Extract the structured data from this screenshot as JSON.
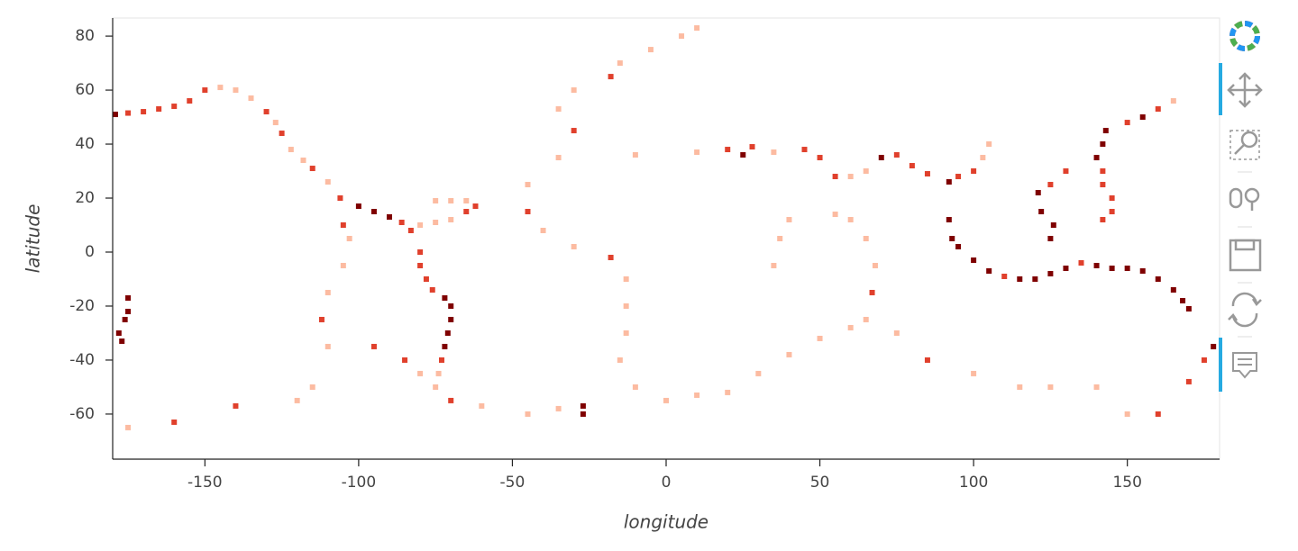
{
  "chart_data": {
    "type": "scatter",
    "xlabel": "longitude",
    "ylabel": "latitude",
    "xlim": [
      -180,
      180
    ],
    "ylim": [
      -76.7,
      86.7
    ],
    "xticks": [
      -150,
      -100,
      -50,
      0,
      50,
      100,
      150
    ],
    "yticks": [
      -60,
      -40,
      -20,
      0,
      20,
      40,
      60,
      80
    ],
    "cmap": [
      "#fcbba1",
      "#e0402c",
      "#7f0000"
    ],
    "x": [
      -180,
      -175,
      -170,
      -165,
      -160,
      -155,
      -150,
      -145,
      -140,
      -135,
      -130,
      -127,
      -125,
      -122,
      -118,
      -115,
      -110,
      -106,
      -100,
      -95,
      -90,
      -86,
      -83,
      -80,
      -75,
      -70,
      -65,
      -62,
      -65,
      -70,
      -75,
      -80,
      -80,
      -78,
      -76,
      -72,
      -70,
      -70,
      -71,
      -72,
      -73,
      -74,
      -75,
      -70,
      -60,
      -45,
      -35,
      -27,
      -27,
      -18,
      -30,
      -35,
      -30,
      -35,
      -45,
      -45,
      -40,
      -30,
      -18,
      -13,
      -13,
      -13,
      -15,
      -10,
      0,
      10,
      20,
      -15,
      -5,
      5,
      10,
      30,
      40,
      50,
      60,
      65,
      67,
      68,
      65,
      60,
      55,
      75,
      85,
      100,
      115,
      125,
      140,
      150,
      160,
      170,
      175,
      178,
      -178,
      -175,
      -175,
      -176,
      -177,
      -175,
      -160,
      -140,
      -120,
      -115,
      -110,
      -112,
      -110,
      -105,
      -103,
      -105,
      -95,
      -85,
      -80,
      -10,
      10,
      20,
      25,
      28,
      35,
      45,
      50,
      55,
      60,
      65,
      70,
      75,
      80,
      85,
      92,
      95,
      100,
      103,
      105,
      92,
      93,
      95,
      100,
      105,
      110,
      115,
      120,
      125,
      130,
      135,
      140,
      145,
      150,
      155,
      160,
      165,
      168,
      170,
      125,
      126,
      122,
      121,
      125,
      130,
      140,
      142,
      143,
      150,
      155,
      160,
      165,
      142,
      145,
      145,
      142,
      142,
      35,
      37,
      40
    ],
    "y": [
      51,
      51.5,
      52,
      53,
      54,
      56,
      60,
      61,
      60,
      57,
      52,
      48,
      44,
      38,
      34,
      31,
      26,
      20,
      17,
      15,
      13,
      11,
      8,
      10,
      11,
      12,
      15,
      17,
      19,
      19,
      19,
      0,
      -5,
      -10,
      -14,
      -17,
      -20,
      -25,
      -30,
      -35,
      -40,
      -45,
      -50,
      -55,
      -57,
      -60,
      -58,
      -57,
      -60,
      65,
      60,
      53,
      45,
      35,
      25,
      15,
      8,
      2,
      -2,
      -10,
      -20,
      -30,
      -40,
      -50,
      -55,
      -53,
      -52,
      70,
      75,
      80,
      83,
      -45,
      -38,
      -32,
      -28,
      -25,
      -15,
      -5,
      5,
      12,
      14,
      -30,
      -40,
      -45,
      -50,
      -50,
      -50,
      -60,
      -60,
      -48,
      -40,
      -35,
      -30,
      -22,
      -17,
      -25,
      -33,
      -65,
      -63,
      -57,
      -55,
      -50,
      -35,
      -25,
      -15,
      -5,
      5,
      10,
      -35,
      -40,
      -45,
      36,
      37,
      38,
      36,
      39,
      37,
      38,
      35,
      28,
      28,
      30,
      35,
      36,
      32,
      29,
      26,
      28,
      30,
      35,
      40,
      12,
      5,
      2,
      -3,
      -7,
      -9,
      -10,
      -10,
      -8,
      -6,
      -4,
      -5,
      -6,
      -6,
      -7,
      -10,
      -14,
      -18,
      -21,
      5,
      10,
      15,
      22,
      25,
      30,
      35,
      40,
      45,
      48,
      50,
      53,
      56,
      12,
      15,
      20,
      25,
      30,
      -5,
      5,
      12
    ],
    "values": [
      3,
      2,
      2,
      2,
      2,
      2,
      2,
      1,
      1,
      1,
      2,
      1,
      2,
      1,
      1,
      2,
      1,
      2,
      3,
      3,
      3,
      2,
      2,
      1,
      1,
      1,
      2,
      2,
      1,
      1,
      1,
      2,
      2,
      2,
      2,
      3,
      3,
      3,
      3,
      3,
      2,
      1,
      1,
      2,
      1,
      1,
      1,
      3,
      3,
      2,
      1,
      1,
      2,
      1,
      1,
      2,
      1,
      1,
      2,
      1,
      1,
      1,
      1,
      1,
      1,
      1,
      1,
      1,
      1,
      1,
      1,
      1,
      1,
      1,
      1,
      1,
      2,
      1,
      1,
      1,
      1,
      1,
      2,
      1,
      1,
      1,
      1,
      1,
      2,
      2,
      2,
      3,
      3,
      3,
      3,
      3,
      3,
      1,
      2,
      2,
      1,
      1,
      1,
      2,
      1,
      1,
      1,
      2,
      2,
      2,
      1,
      1,
      1,
      2,
      3,
      2,
      1,
      2,
      2,
      2,
      1,
      1,
      3,
      2,
      2,
      2,
      3,
      2,
      2,
      1,
      1,
      3,
      3,
      3,
      3,
      3,
      2,
      3,
      3,
      3,
      3,
      2,
      3,
      3,
      3,
      3,
      3,
      3,
      3,
      3,
      3,
      3,
      3,
      3,
      2,
      2,
      3,
      3,
      3,
      2,
      3,
      2,
      1,
      2,
      2,
      2,
      2,
      2,
      1,
      1,
      1
    ]
  }
}
